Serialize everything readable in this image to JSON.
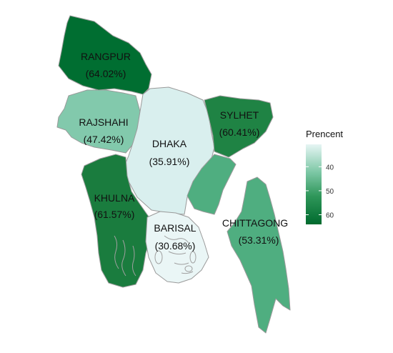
{
  "chart_data": {
    "type": "choropleth",
    "legend": {
      "title": "Prencent",
      "ticks": [
        40,
        50,
        60
      ],
      "range": [
        30.68,
        64.02
      ],
      "color_low": "#e6f5f4",
      "color_high": "#006a2e"
    },
    "regions": [
      {
        "id": "rangpur",
        "name": "RANGPUR",
        "value": 64.02,
        "value_label": "(64.02%)",
        "color": "#006e31"
      },
      {
        "id": "rajshahi",
        "name": "RAJSHAHI",
        "value": 47.42,
        "value_label": "(47.42%)",
        "color": "#82c9ac"
      },
      {
        "id": "dhaka",
        "name": "DHAKA",
        "value": 35.91,
        "value_label": "(35.91%)",
        "color": "#d9efee"
      },
      {
        "id": "sylhet",
        "name": "SYLHET",
        "value": 60.41,
        "value_label": "(60.41%)",
        "color": "#1f8344"
      },
      {
        "id": "khulna",
        "name": "KHULNA",
        "value": 61.57,
        "value_label": "(61.57%)",
        "color": "#1a7c3e"
      },
      {
        "id": "barisal",
        "name": "BARISAL",
        "value": 30.68,
        "value_label": "(30.68%)",
        "color": "#eaf6f6"
      },
      {
        "id": "chittagong",
        "name": "CHITTAGONG",
        "value": 53.31,
        "value_label": "(53.31%)",
        "color": "#4fae80"
      }
    ]
  }
}
